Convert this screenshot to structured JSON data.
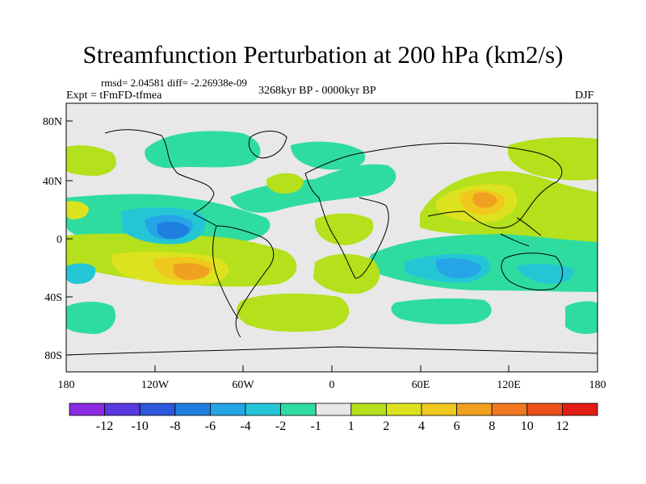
{
  "title": "Streamfunction Perturbation at 200 hPa (km2/s)",
  "stats": "rmsd= 2.04581 diff= -2.26938e-09",
  "experiment": "Expt = tFmFD-tfmea",
  "period": "3268kyr BP - 0000kyr BP",
  "season": "DJF",
  "map": {
    "projection": "cylindrical equidistant",
    "lon_range": [
      -180,
      180
    ],
    "lat_range": [
      -90,
      90
    ],
    "lat_ticks": [
      "80N",
      "40N",
      "0",
      "40S",
      "80S"
    ],
    "lon_ticks": [
      "180",
      "120W",
      "60W",
      "0",
      "60E",
      "120E",
      "180"
    ],
    "coastlines": true,
    "features": [
      {
        "name": "east-pacific-negative",
        "lon": -95,
        "lat": 6,
        "value": -7
      },
      {
        "name": "south-pacific-positive",
        "lon": -92,
        "lat": -22,
        "value": 8
      },
      {
        "name": "asia-positive",
        "lon": 110,
        "lat": 28,
        "value": 7
      },
      {
        "name": "indian-ocean-negative",
        "lon": 80,
        "lat": -17,
        "value": -5
      },
      {
        "name": "north-pacific-positive",
        "lon": 155,
        "lat": 48,
        "value": 3
      },
      {
        "name": "north-atlantic-negative",
        "lon": 10,
        "lat": 45,
        "value": -3
      },
      {
        "name": "africa-positive",
        "lon": 5,
        "lat": 4,
        "value": 3
      },
      {
        "name": "south-atlantic-positive",
        "lon": -15,
        "lat": -35,
        "value": 3
      }
    ]
  },
  "colorbar": {
    "labels": [
      "-12",
      "-10",
      "-8",
      "-6",
      "-4",
      "-2",
      "-1",
      "1",
      "2",
      "4",
      "6",
      "8",
      "10",
      "12"
    ],
    "colors": [
      "#8a2be2",
      "#5a3ae0",
      "#2d57dc",
      "#1e7ee0",
      "#25a4e6",
      "#24c6d6",
      "#2fdca0",
      "#e8e8e8",
      "#b4e01c",
      "#dce31e",
      "#f0c81e",
      "#f0a01e",
      "#f0781e",
      "#eb5019",
      "#e21e14"
    ]
  }
}
